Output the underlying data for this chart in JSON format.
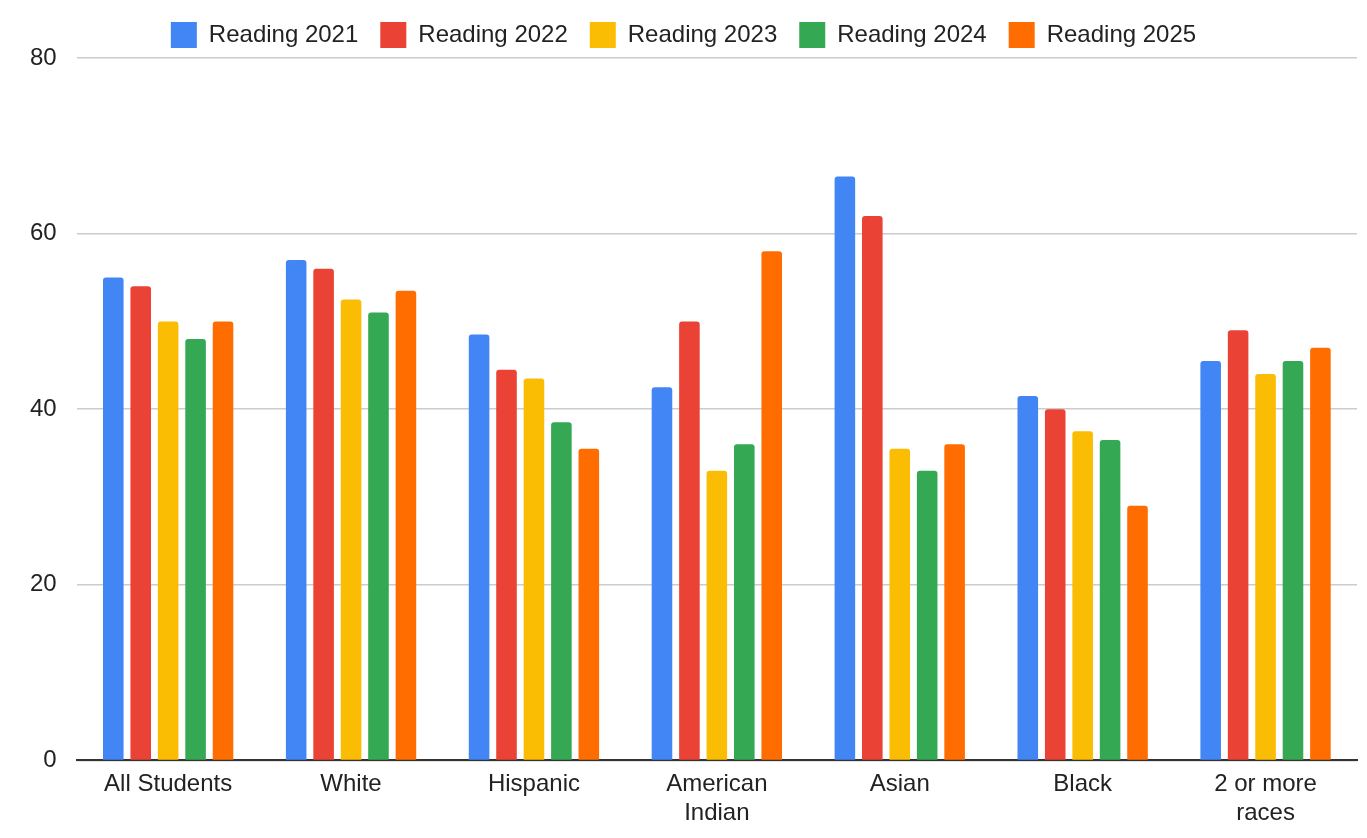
{
  "chart_data": {
    "type": "bar",
    "categories": [
      "All Students",
      "White",
      "Hispanic",
      "American Indian",
      "Asian",
      "Black",
      "2 or more races"
    ],
    "series": [
      {
        "name": "Reading 2021",
        "color": "#4285f4",
        "values": [
          55,
          57,
          48.5,
          42.5,
          66.5,
          41.5,
          45.5
        ]
      },
      {
        "name": "Reading 2022",
        "color": "#ea4335",
        "values": [
          54,
          56,
          44.5,
          50,
          62,
          40,
          49
        ]
      },
      {
        "name": "Reading 2023",
        "color": "#fbbc04",
        "values": [
          50,
          52.5,
          43.5,
          33,
          35.5,
          37.5,
          44
        ]
      },
      {
        "name": "Reading 2024",
        "color": "#34a853",
        "values": [
          48,
          51,
          38.5,
          36,
          33,
          36.5,
          45.5
        ]
      },
      {
        "name": "Reading 2025",
        "color": "#ff6d01",
        "values": [
          50,
          53.5,
          35.5,
          58,
          36,
          29,
          47
        ]
      }
    ],
    "ylim": [
      0,
      80
    ],
    "yticks": [
      0,
      20,
      40,
      60,
      80
    ],
    "grid": "y",
    "legend": "top"
  }
}
